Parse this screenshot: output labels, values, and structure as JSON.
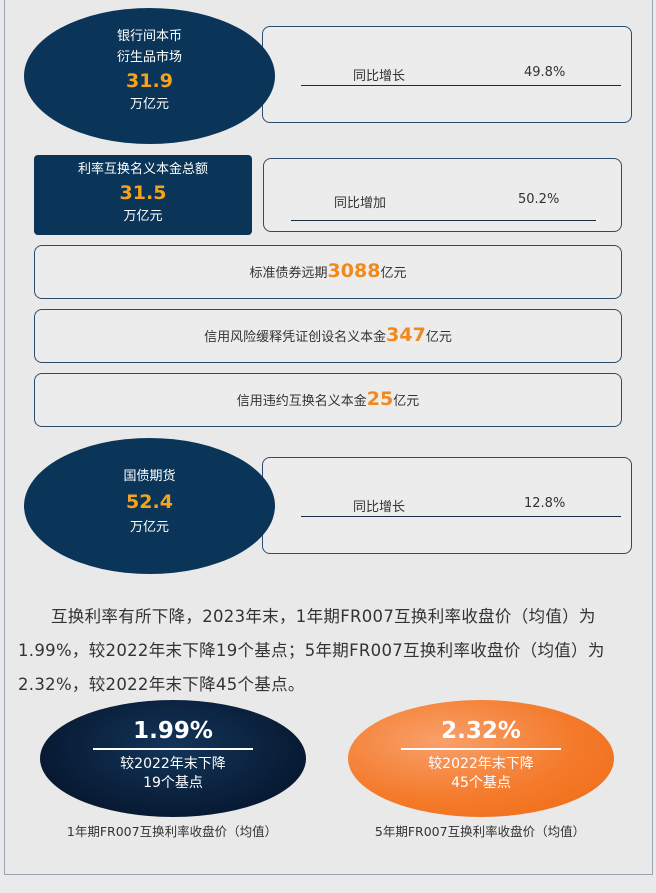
{
  "interbank": {
    "title_line1": "银行间本币",
    "title_line2": "衍生品市场",
    "value": "31.9",
    "unit": "万亿元",
    "stat_label": "同比增长",
    "stat_value": "49.8%"
  },
  "irs": {
    "title": "利率互换名义本金总额",
    "value": "31.5",
    "unit": "万亿元",
    "stat_label": "同比增加",
    "stat_value": "50.2%"
  },
  "bond_forward": {
    "prefix": "标准债券远期",
    "value": "3088",
    "suffix": "亿元"
  },
  "crmw": {
    "prefix": "信用风险缓释凭证创设名义本金",
    "value": "347",
    "suffix": "亿元"
  },
  "cds": {
    "prefix": "信用违约互换名义本金",
    "value": "25",
    "suffix": "亿元"
  },
  "treasury_futures": {
    "title": "国债期货",
    "value": "52.4",
    "unit": "万亿元",
    "stat_label": "同比增长",
    "stat_value": "12.8%"
  },
  "paragraph": "互换利率有所下降，2023年末，1年期FR007互换利率收盘价（均值）为1.99%，较2022年末下降19个基点；5年期FR007互换利率收盘价（均值）为2.32%，较2022年末下降45个基点。",
  "rate_1y": {
    "value": "1.99%",
    "line1": "较2022年末下降",
    "line2": "19个基点",
    "caption": "1年期FR007互换利率收盘价（均值）"
  },
  "rate_5y": {
    "value": "2.32%",
    "line1": "较2022年末下降",
    "line2": "45个基点",
    "caption": "5年期FR007互换利率收盘价（均值）"
  },
  "colors": {
    "navy": "#0b3558",
    "orange": "#f5a31a",
    "orange_ellipse": "#f47a2a"
  }
}
